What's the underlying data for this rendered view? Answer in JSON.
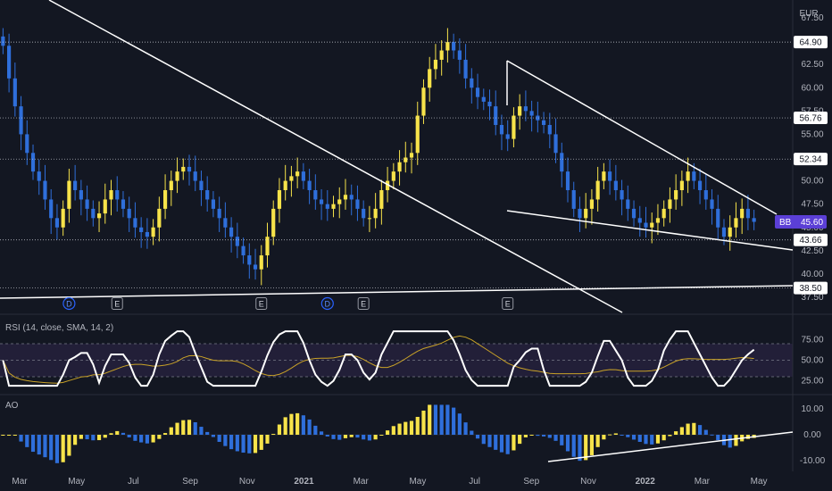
{
  "chart_data": {
    "type": "candlestick",
    "currency": "EUR",
    "price_axis": {
      "ticks": [
        "67.50",
        "62.50",
        "60.00",
        "57.50",
        "55.00",
        "50.00",
        "47.50",
        "45.00",
        "42.50",
        "40.00",
        "37.50"
      ],
      "tick_values": [
        67.5,
        62.5,
        60.0,
        57.5,
        55.0,
        50.0,
        47.5,
        45.0,
        42.5,
        40.0,
        37.5
      ],
      "range": [
        37.5,
        67.5
      ]
    },
    "time_axis": {
      "labels": [
        "Mar",
        "May",
        "Jul",
        "Sep",
        "Nov",
        "2021",
        "Mar",
        "May",
        "Jul",
        "Sep",
        "Nov",
        "2022",
        "Mar",
        "May"
      ]
    },
    "price_levels": [
      {
        "value": 64.9,
        "label": "64.90"
      },
      {
        "value": 56.76,
        "label": "56.76"
      },
      {
        "value": 52.34,
        "label": "52.34"
      },
      {
        "value": 43.66,
        "label": "43.66"
      },
      {
        "value": 38.5,
        "label": "38.50"
      }
    ],
    "last_price": {
      "symbol": "BB",
      "value": 45.6,
      "label": "45.60"
    },
    "closes": [
      64.5,
      61,
      58,
      55,
      53,
      51,
      50,
      48,
      46,
      45,
      47,
      50,
      49,
      48,
      47,
      46,
      46.5,
      48,
      49,
      48,
      47,
      46,
      45,
      44.5,
      44,
      45,
      47,
      49,
      50,
      51,
      51.5,
      51,
      50,
      49,
      48,
      47,
      46,
      45,
      44,
      43,
      42,
      41,
      40.5,
      42,
      44,
      47,
      49,
      50,
      50.5,
      51,
      50,
      49,
      48,
      47.5,
      47,
      47.5,
      48,
      48.5,
      48,
      47,
      46,
      46,
      47,
      49,
      50,
      51,
      52,
      52.5,
      53,
      57,
      60,
      62,
      63,
      64,
      64.9,
      64,
      63,
      61,
      60,
      59,
      58.5,
      58,
      56,
      55,
      54.5,
      57,
      58,
      57.5,
      57,
      56.5,
      56,
      55,
      53,
      51,
      49,
      47,
      46,
      47,
      48,
      50,
      51,
      50,
      49,
      48,
      47,
      46,
      45.5,
      45,
      45.5,
      46,
      47,
      48,
      49,
      50,
      51,
      50,
      49,
      48,
      47,
      45,
      44,
      45,
      46,
      47,
      46,
      45.6
    ],
    "event_markers": [
      {
        "label": "D",
        "index": 11
      },
      {
        "label": "E",
        "index": 19
      },
      {
        "label": "E",
        "index": 43
      },
      {
        "label": "D",
        "index": 54
      },
      {
        "label": "E",
        "index": 60
      },
      {
        "label": "E",
        "index": 84
      }
    ],
    "rsi": {
      "title": "RSI (14, close, SMA, 14, 2)",
      "ticks": [
        "75.00",
        "50.00",
        "25.00"
      ],
      "tick_values": [
        75,
        50,
        25
      ],
      "band": [
        30,
        70
      ],
      "range": [
        17,
        97
      ]
    },
    "ao": {
      "title": "AO",
      "ticks": [
        "10.00",
        "0.00",
        "-10.00"
      ],
      "tick_values": [
        10,
        0,
        -10
      ],
      "range": [
        -12,
        12
      ]
    },
    "colors": {
      "background": "#131722",
      "up": "#f7e34a",
      "down": "#2f6fdb",
      "line": "#ffffff",
      "signal": "#c9a227",
      "grid": "#2a2e39",
      "label_bg": "#ffffff",
      "last_price_bg": "#5b3fd6"
    }
  }
}
